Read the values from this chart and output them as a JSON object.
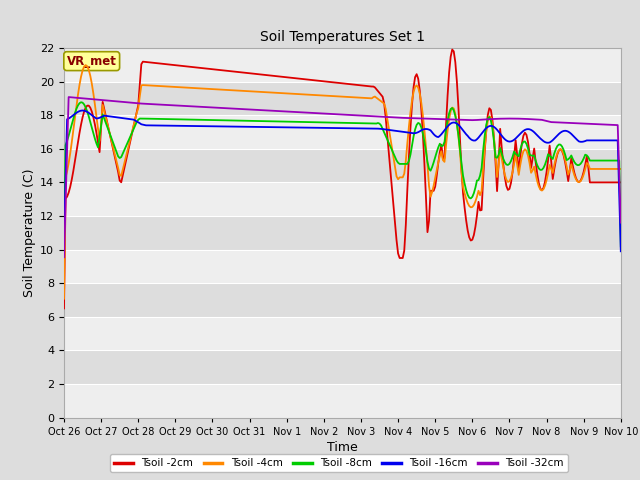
{
  "title": "Soil Temperatures Set 1",
  "xlabel": "Time",
  "ylabel": "Soil Temperature (C)",
  "ylim": [
    0,
    22
  ],
  "yticks": [
    0,
    2,
    4,
    6,
    8,
    10,
    12,
    14,
    16,
    18,
    20,
    22
  ],
  "xtick_labels": [
    "Oct 26",
    "Oct 27",
    "Oct 28",
    "Oct 29",
    "Oct 30",
    "Oct 31",
    "Nov 1",
    "Nov 2",
    "Nov 3",
    "Nov 4",
    "Nov 5",
    "Nov 6",
    "Nov 7",
    "Nov 8",
    "Nov 9",
    "Nov 10"
  ],
  "legend_labels": [
    "Tsoil -2cm",
    "Tsoil -4cm",
    "Tsoil -8cm",
    "Tsoil -16cm",
    "Tsoil -32cm"
  ],
  "colors": {
    "Tsoil_2cm": "#dd0000",
    "Tsoil_4cm": "#ff8800",
    "Tsoil_8cm": "#00cc00",
    "Tsoil_16cm": "#0000ee",
    "Tsoil_32cm": "#9900bb"
  },
  "bg_color": "#dddddd",
  "plot_bg_light": "#eeeeee",
  "plot_bg_dark": "#dddddd",
  "annotation_label": "VR_met",
  "annotation_box_color": "#ffff99",
  "annotation_text_color": "#880000"
}
